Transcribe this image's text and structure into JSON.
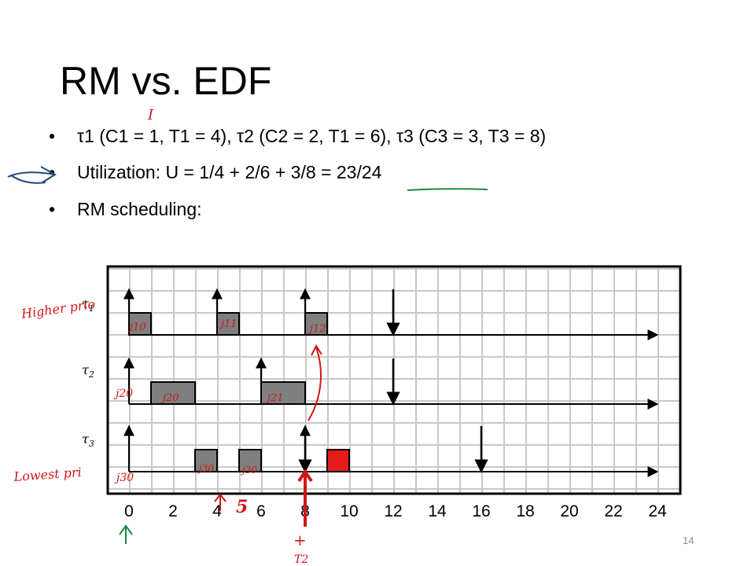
{
  "slide": {
    "title": "RM vs. EDF",
    "page_number": "14"
  },
  "bullets": [
    {
      "symbol": "•",
      "text": "τ1 (C1 = 1, T1 = 4), τ2 (C2 = 2, T1 = 6), τ3 (C3 = 3, T3 = 8)"
    },
    {
      "symbol": "•",
      "text": "Utilization: U = 1/4 + 2/6 + 3/8 = 23/24"
    },
    {
      "symbol": "•",
      "text": "RM scheduling:"
    }
  ],
  "chart_data": {
    "type": "gantt",
    "x_ticks": [
      "0",
      "2",
      "4",
      "6",
      "8",
      "10",
      "12",
      "14",
      "16",
      "18",
      "20",
      "22",
      "24"
    ],
    "x_range": [
      0,
      25
    ],
    "grid": true,
    "tasks": [
      {
        "label": "τ1",
        "releases": [
          0,
          4,
          8
        ],
        "deadlines": [
          12
        ],
        "execution": [
          [
            0,
            1
          ],
          [
            4,
            5
          ],
          [
            8,
            9
          ]
        ]
      },
      {
        "label": "τ2",
        "releases": [
          0,
          6
        ],
        "deadlines": [
          12
        ],
        "execution": [
          [
            1,
            3
          ],
          [
            6,
            8
          ]
        ]
      },
      {
        "label": "τ3",
        "releases": [
          0,
          8
        ],
        "deadlines": [
          8,
          16
        ],
        "execution": [
          [
            3,
            4
          ],
          [
            5,
            6
          ],
          [
            9,
            10
          ]
        ],
        "highlighted": [
          [
            9,
            10
          ]
        ]
      }
    ]
  },
  "annotations": {
    "higher_prio": "Higher prio",
    "lowest_pri": "Lowest pri",
    "i_mark": "I",
    "j10": "j10",
    "j11": "j11",
    "j12": "j12",
    "j20_left": "j20",
    "j20_block": "j20",
    "j21": "j21",
    "j30_left": "j30",
    "j30_block": "j30",
    "j30_block2": "j30",
    "five": "5",
    "t1_mark": "+",
    "t2_mark": "T2"
  },
  "colors": {
    "block_fill": "#7f7f7f",
    "block_highlight": "#e51b1b",
    "annotation_red": "#d31515",
    "annotation_green": "#1c8a3a",
    "annotation_blue": "#1e4a7a",
    "grid_line": "#c8c8c8"
  }
}
